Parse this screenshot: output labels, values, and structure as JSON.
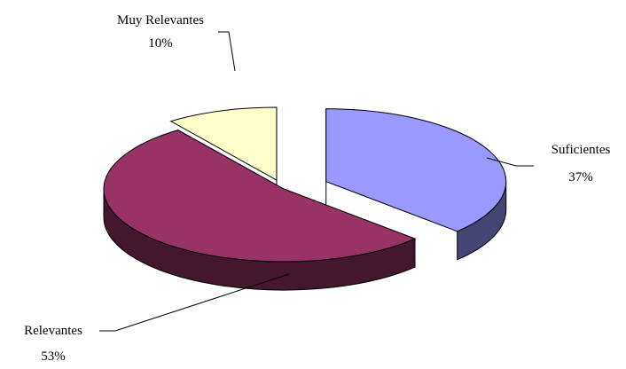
{
  "chart_data": {
    "type": "pie",
    "title": "",
    "style": "3d-exploded",
    "legend": "none",
    "slices": [
      {
        "label": "Suficientes",
        "percent_label": "37%",
        "value": 37,
        "color": "#9999ff"
      },
      {
        "label": "Relevantes",
        "percent_label": "53%",
        "value": 53,
        "color": "#993366"
      },
      {
        "label": "Muy Relevantes",
        "percent_label": "10%",
        "value": 10,
        "color": "#ffffcc"
      }
    ]
  }
}
